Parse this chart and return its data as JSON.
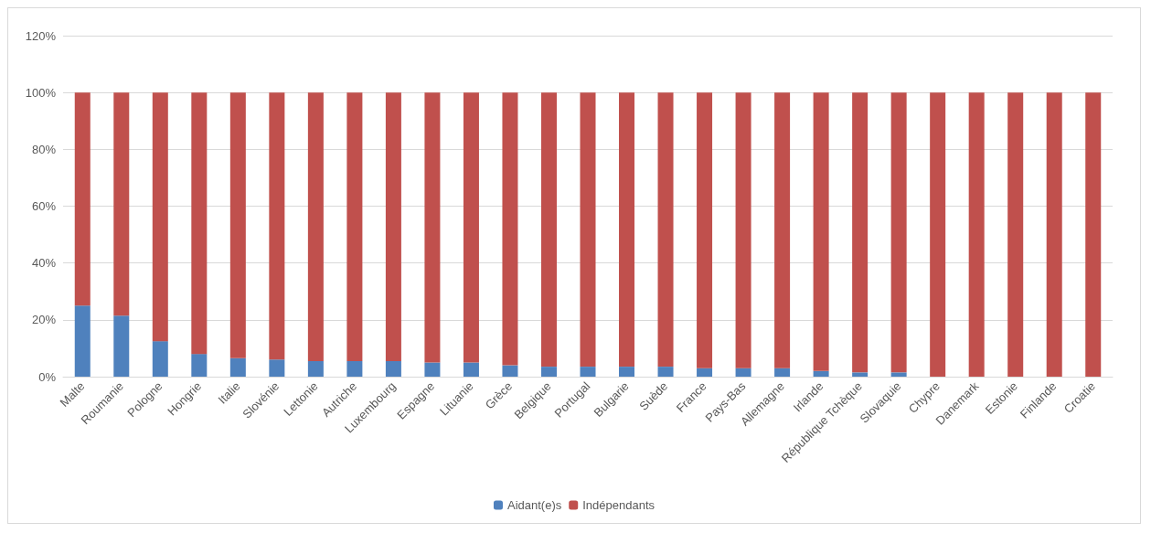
{
  "chart_data": {
    "type": "bar",
    "stacked": true,
    "categories": [
      "Malte",
      "Roumanie",
      "Pologne",
      "Hongrie",
      "Italie",
      "Slovénie",
      "Lettonie",
      "Autriche",
      "Luxembourg",
      "Espagne",
      "Lituanie",
      "Grèce",
      "Belgique",
      "Portugal",
      "Bulgarie",
      "Suède",
      "France",
      "Pays-Bas",
      "Allemagne",
      "Irlande",
      "République Tchèque",
      "Slovaquie",
      "Chypre",
      "Danemark",
      "Estonie",
      "Finlande",
      "Croatie"
    ],
    "series": [
      {
        "name": "Aidant(e)s",
        "color": "#4f81bd",
        "values": [
          25,
          21.5,
          12.5,
          8,
          6.5,
          6,
          5.5,
          5.5,
          5.5,
          5,
          5,
          4,
          3.5,
          3.5,
          3.5,
          3.5,
          3,
          3,
          3,
          2,
          1.5,
          1.5,
          0,
          0,
          0,
          0,
          0
        ]
      },
      {
        "name": "Indépendants",
        "color": "#c0504d",
        "values": [
          75,
          78.5,
          87.5,
          92,
          93.5,
          94,
          94.5,
          94.5,
          94.5,
          95,
          95,
          96,
          96.5,
          96.5,
          96.5,
          96.5,
          97,
          97,
          97,
          98,
          98.5,
          98.5,
          100,
          100,
          100,
          100,
          100
        ]
      }
    ],
    "ylim": [
      0,
      120
    ],
    "yticks": [
      {
        "value": 0,
        "label": "0%"
      },
      {
        "value": 20,
        "label": "20%"
      },
      {
        "value": 40,
        "label": "40%"
      },
      {
        "value": 60,
        "label": "60%"
      },
      {
        "value": 80,
        "label": "80%"
      },
      {
        "value": 100,
        "label": "100%"
      },
      {
        "value": 120,
        "label": "120%"
      }
    ],
    "grid": "y",
    "legend": "bottom"
  }
}
